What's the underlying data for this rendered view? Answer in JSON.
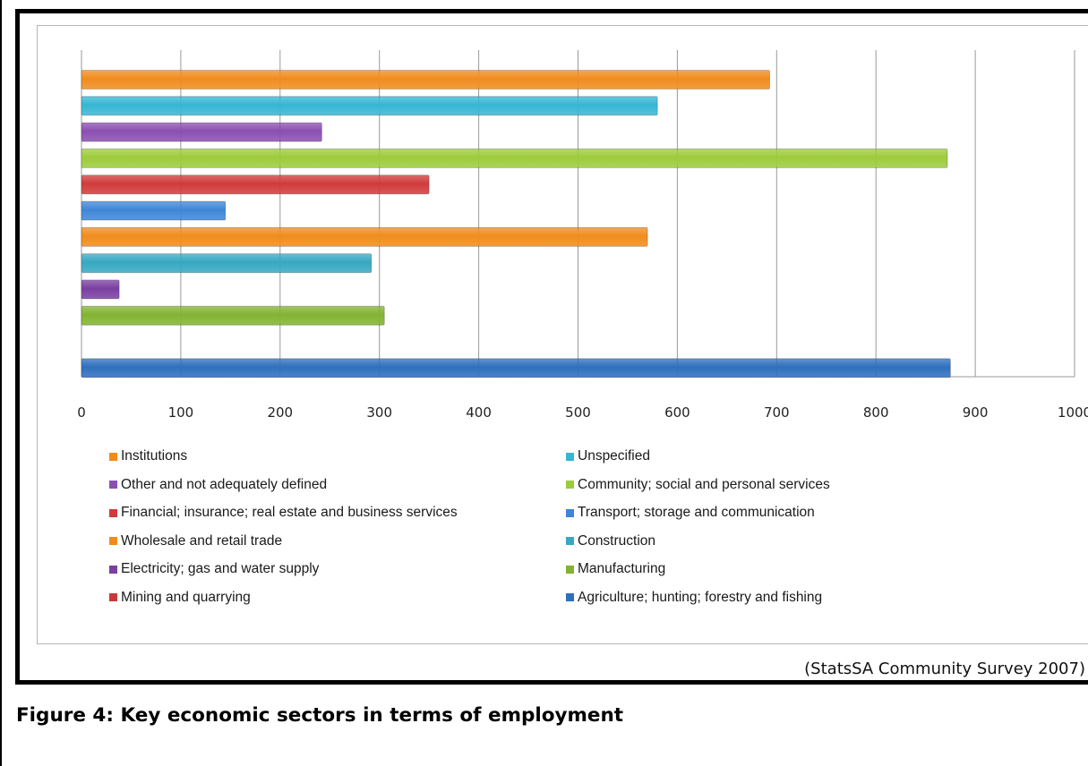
{
  "chart_data": {
    "type": "bar",
    "orientation": "horizontal",
    "categories": [
      "Institutions",
      "Unspecified",
      "Other and not adequately defined",
      "Community; social and personal services",
      "Financial; insurance; real estate and business services",
      "Transport; storage and communication",
      "Wholesale and retail trade",
      "Construction",
      "Electricity; gas and water supply",
      "Manufacturing",
      "Mining and quarrying",
      "Agriculture; hunting; forestry and fishing"
    ],
    "values": [
      693,
      580,
      242,
      872,
      350,
      145,
      570,
      292,
      38,
      305,
      0,
      875
    ],
    "colors": [
      "#f08c1e",
      "#36b6d3",
      "#8a4fb0",
      "#9ccb3b",
      "#d03b3b",
      "#3f86d6",
      "#f08c1e",
      "#36a8c2",
      "#7a3fa0",
      "#82b331",
      "#c83a3a",
      "#2f6fbe"
    ],
    "xlim": [
      0,
      1000
    ],
    "xticks": [
      "0",
      "100",
      "200",
      "300",
      "400",
      "500",
      "600",
      "700",
      "800",
      "900",
      "1000"
    ],
    "grid": true,
    "legend_position": "bottom",
    "legend_columns": 2
  },
  "source_note": "(StatsSA Community Survey 2007)",
  "caption": "Figure 4: Key economic sectors in terms of employment"
}
